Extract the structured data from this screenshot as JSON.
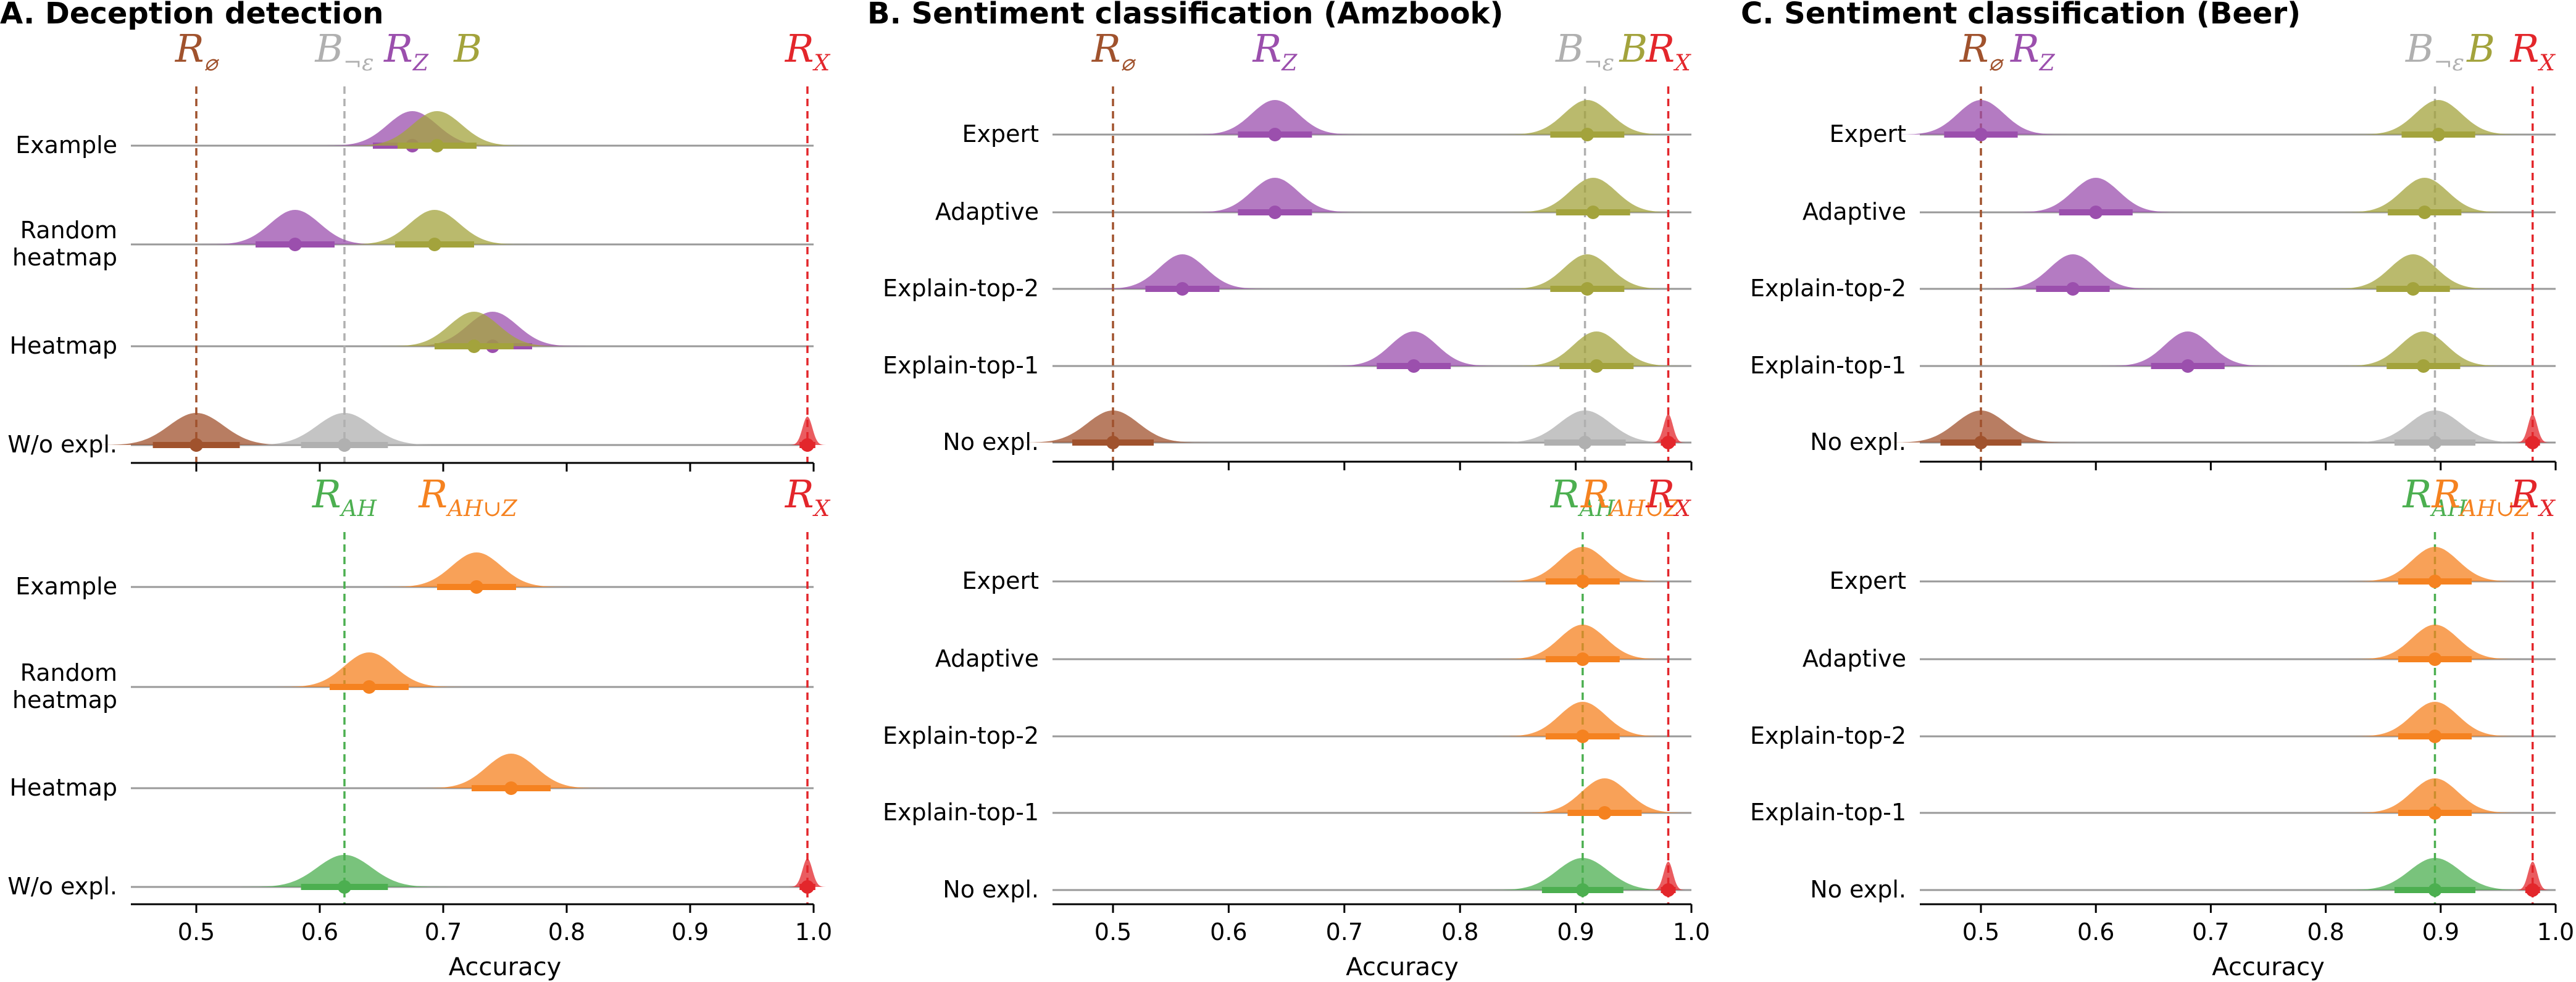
{
  "colors": {
    "r_null": "#a0522d",
    "r_z": "#9b4fad",
    "b_neg": "#b0b0b0",
    "b": "#a3a33c",
    "r_x": "#e3262b",
    "r_ah": "#4caf50",
    "r_ahuz": "#f58220"
  },
  "ref_labels": {
    "r_null": {
      "main": "R",
      "sub": "⌀"
    },
    "b_neg": {
      "main": "B",
      "sub": "¬ε"
    },
    "r_z": {
      "main": "R",
      "sub": "Z"
    },
    "b": {
      "main": "B",
      "sub": ""
    },
    "r_x": {
      "main": "R",
      "sub": "X"
    },
    "r_ah": {
      "main": "R",
      "sub": "AH"
    },
    "r_ahuz": {
      "main": "R",
      "sub": "AH∪Z"
    }
  },
  "chart_data": [
    {
      "type": "scatter",
      "title": "A. Deception detection",
      "xlabel": "Accuracy",
      "xlim": [
        0.45,
        1.0
      ],
      "xticks": [
        "0.5",
        "0.6",
        "0.7",
        "0.8",
        "0.9",
        "1.0"
      ],
      "xtick_values": [
        0.5,
        0.6,
        0.7,
        0.8,
        0.9,
        1.0
      ],
      "top": {
        "rows": [
          "Example",
          "Random\nheatmap",
          "Heatmap",
          "W/o expl."
        ],
        "reference_lines": [
          {
            "key": "r_null",
            "x": 0.5
          },
          {
            "key": "b_neg",
            "x": 0.62
          },
          {
            "key": "r_z",
            "x": 0.67
          },
          {
            "key": "b",
            "x": 0.72
          },
          {
            "key": "r_x",
            "x": 0.995
          }
        ],
        "series": [
          {
            "key": "r_z",
            "values": [
              0.675,
              0.58,
              0.74,
              null
            ]
          },
          {
            "key": "b",
            "values": [
              0.695,
              0.693,
              0.725,
              null
            ]
          },
          {
            "key": "r_null",
            "values": [
              null,
              null,
              null,
              0.5
            ]
          },
          {
            "key": "b_neg",
            "values": [
              null,
              null,
              null,
              0.62
            ]
          },
          {
            "key": "r_x",
            "values": [
              null,
              null,
              null,
              0.995
            ]
          }
        ]
      },
      "bottom": {
        "rows": [
          "Example",
          "Random\nheatmap",
          "Heatmap",
          "W/o expl."
        ],
        "reference_lines": [
          {
            "key": "r_ah",
            "x": 0.62
          },
          {
            "key": "r_ahuz",
            "x": 0.72
          },
          {
            "key": "r_x",
            "x": 0.995
          }
        ],
        "series": [
          {
            "key": "r_ahuz",
            "values": [
              0.727,
              0.64,
              0.755,
              null
            ]
          },
          {
            "key": "r_ah",
            "values": [
              null,
              null,
              null,
              0.62
            ]
          },
          {
            "key": "r_x",
            "values": [
              null,
              null,
              null,
              0.995
            ]
          }
        ]
      }
    },
    {
      "type": "scatter",
      "title": "B. Sentiment classification (Amzbook)",
      "xlabel": "Accuracy",
      "xlim": [
        0.45,
        1.0
      ],
      "xticks": [
        "0.5",
        "0.6",
        "0.7",
        "0.8",
        "0.9",
        "1.0"
      ],
      "xtick_values": [
        0.5,
        0.6,
        0.7,
        0.8,
        0.9,
        1.0
      ],
      "top": {
        "rows": [
          "Expert",
          "Adaptive",
          "Explain-top-2",
          "Explain-top-1",
          "No expl."
        ],
        "reference_lines": [
          {
            "key": "r_null",
            "x": 0.5
          },
          {
            "key": "r_z",
            "x": 0.64
          },
          {
            "key": "b_neg",
            "x": 0.908
          },
          {
            "key": "b",
            "x": 0.95
          },
          {
            "key": "r_x",
            "x": 0.98
          }
        ],
        "series": [
          {
            "key": "r_z",
            "values": [
              0.64,
              0.64,
              0.56,
              0.76,
              null
            ]
          },
          {
            "key": "b",
            "values": [
              0.91,
              0.915,
              0.91,
              0.918,
              null
            ]
          },
          {
            "key": "r_null",
            "values": [
              null,
              null,
              null,
              null,
              0.5
            ]
          },
          {
            "key": "b_neg",
            "values": [
              null,
              null,
              null,
              null,
              0.908
            ]
          },
          {
            "key": "r_x",
            "values": [
              null,
              null,
              null,
              null,
              0.98
            ]
          }
        ]
      },
      "bottom": {
        "rows": [
          "Expert",
          "Adaptive",
          "Explain-top-2",
          "Explain-top-1",
          "No expl."
        ],
        "reference_lines": [
          {
            "key": "r_ah",
            "x": 0.906
          },
          {
            "key": "r_ahuz",
            "x": 0.947
          },
          {
            "key": "r_x",
            "x": 0.98
          }
        ],
        "series": [
          {
            "key": "r_ahuz",
            "values": [
              0.906,
              0.906,
              0.906,
              0.925,
              null
            ]
          },
          {
            "key": "r_ah",
            "values": [
              null,
              null,
              null,
              null,
              0.906
            ]
          },
          {
            "key": "r_x",
            "values": [
              null,
              null,
              null,
              null,
              0.98
            ]
          }
        ]
      }
    },
    {
      "type": "scatter",
      "title": "C. Sentiment classification (Beer)",
      "xlabel": "Accuracy",
      "xlim": [
        0.45,
        1.0
      ],
      "xticks": [
        "0.5",
        "0.6",
        "0.7",
        "0.8",
        "0.9",
        "1.0"
      ],
      "xtick_values": [
        0.5,
        0.6,
        0.7,
        0.8,
        0.9,
        1.0
      ],
      "top": {
        "rows": [
          "Expert",
          "Adaptive",
          "Explain-top-2",
          "Explain-top-1",
          "No expl."
        ],
        "reference_lines": [
          {
            "key": "r_null",
            "x": 0.5
          },
          {
            "key": "r_z",
            "x": 0.545
          },
          {
            "key": "b_neg",
            "x": 0.895
          },
          {
            "key": "b",
            "x": 0.935
          },
          {
            "key": "r_x",
            "x": 0.98
          }
        ],
        "series": [
          {
            "key": "r_z",
            "values": [
              0.5,
              0.6,
              0.58,
              0.68,
              null
            ]
          },
          {
            "key": "b",
            "values": [
              0.898,
              0.886,
              0.876,
              0.885,
              null
            ]
          },
          {
            "key": "r_null",
            "values": [
              null,
              null,
              null,
              null,
              0.5
            ]
          },
          {
            "key": "b_neg",
            "values": [
              null,
              null,
              null,
              null,
              0.895
            ]
          },
          {
            "key": "r_x",
            "values": [
              null,
              null,
              null,
              null,
              0.98
            ]
          }
        ]
      },
      "bottom": {
        "rows": [
          "Expert",
          "Adaptive",
          "Explain-top-2",
          "Explain-top-1",
          "No expl."
        ],
        "reference_lines": [
          {
            "key": "r_ah",
            "x": 0.895
          },
          {
            "key": "r_ahuz",
            "x": 0.935
          },
          {
            "key": "r_x",
            "x": 0.98
          }
        ],
        "series": [
          {
            "key": "r_ahuz",
            "values": [
              0.895,
              0.895,
              0.895,
              0.895,
              null
            ]
          },
          {
            "key": "r_ah",
            "values": [
              null,
              null,
              null,
              null,
              0.895
            ]
          },
          {
            "key": "r_x",
            "values": [
              null,
              null,
              null,
              null,
              0.98
            ]
          }
        ]
      }
    }
  ]
}
